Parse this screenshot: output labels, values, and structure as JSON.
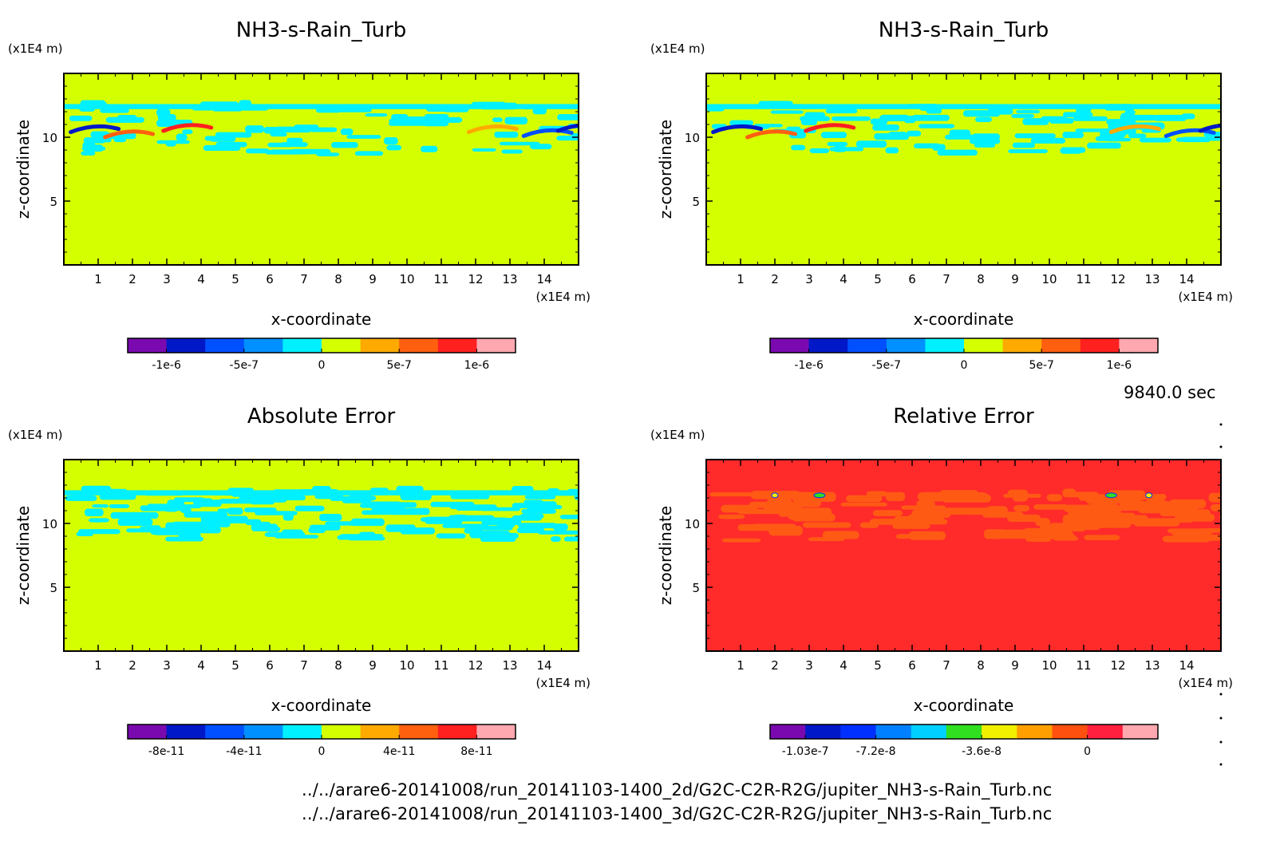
{
  "timestamp": "9840.0 sec",
  "footer": {
    "path_2d": "../../arare6-20141008/run_20141103-1400_2d/G2C-C2R-R2G/jupiter_NH3-s-Rain_Turb.nc",
    "path_3d": "../../arare6-20141008/run_20141103-1400_3d/G2C-C2R-R2G/jupiter_NH3-s-Rain_Turb.nc"
  },
  "chart_data": [
    {
      "type": "heatmap",
      "title": "NH3-s-Rain_Turb",
      "xlabel": "x-coordinate",
      "ylabel": "z-coordinate",
      "x_unit": "(x1E4 m)",
      "y_unit": "(x1E4 m)",
      "xlim": [
        0,
        15
      ],
      "ylim": [
        0,
        15
      ],
      "x_ticks": [
        "1",
        "2",
        "3",
        "4",
        "5",
        "6",
        "7",
        "8",
        "9",
        "10",
        "11",
        "12",
        "13",
        "14"
      ],
      "y_ticks": [
        "5",
        "10"
      ],
      "background_color": "#d4ff00",
      "colorbar": {
        "colors": [
          "#7a0ab0",
          "#0018c8",
          "#0050ff",
          "#0090ff",
          "#00f0ff",
          "#d4ff00",
          "#ffaa00",
          "#ff6010",
          "#ff2020",
          "#ffa8b0"
        ],
        "labels": [
          "-1e-6",
          "-5e-7",
          "0",
          "5e-7",
          "1e-6"
        ]
      },
      "feature_band_z": [
        8.5,
        12.5
      ]
    },
    {
      "type": "heatmap",
      "title": "NH3-s-Rain_Turb",
      "xlabel": "x-coordinate",
      "ylabel": "z-coordinate",
      "x_unit": "(x1E4 m)",
      "y_unit": "(x1E4 m)",
      "xlim": [
        0,
        15
      ],
      "ylim": [
        0,
        15
      ],
      "x_ticks": [
        "1",
        "2",
        "3",
        "4",
        "5",
        "6",
        "7",
        "8",
        "9",
        "10",
        "11",
        "12",
        "13",
        "14"
      ],
      "y_ticks": [
        "5",
        "10"
      ],
      "background_color": "#d4ff00",
      "colorbar": {
        "colors": [
          "#7a0ab0",
          "#0018c8",
          "#0050ff",
          "#0090ff",
          "#00f0ff",
          "#d4ff00",
          "#ffaa00",
          "#ff6010",
          "#ff2020",
          "#ffa8b0"
        ],
        "labels": [
          "-1e-6",
          "-5e-7",
          "0",
          "5e-7",
          "1e-6"
        ]
      },
      "feature_band_z": [
        8.5,
        12.5
      ]
    },
    {
      "type": "heatmap",
      "title": "Absolute Error",
      "xlabel": "x-coordinate",
      "ylabel": "z-coordinate",
      "x_unit": "(x1E4 m)",
      "y_unit": "(x1E4 m)",
      "xlim": [
        0,
        15
      ],
      "ylim": [
        0,
        15
      ],
      "x_ticks": [
        "1",
        "2",
        "3",
        "4",
        "5",
        "6",
        "7",
        "8",
        "9",
        "10",
        "11",
        "12",
        "13",
        "14"
      ],
      "y_ticks": [
        "5",
        "10"
      ],
      "background_color": "#d4ff00",
      "colorbar": {
        "colors": [
          "#7a0ab0",
          "#0018c8",
          "#0050ff",
          "#0090ff",
          "#00f0ff",
          "#d4ff00",
          "#ffaa00",
          "#ff6010",
          "#ff2020",
          "#ffa8b0"
        ],
        "labels": [
          "-8e-11",
          "-4e-11",
          "0",
          "4e-11",
          "8e-11"
        ]
      },
      "feature_band_z": [
        8.5,
        12.5
      ]
    },
    {
      "type": "heatmap",
      "title": "Relative Error",
      "xlabel": "x-coordinate",
      "ylabel": "z-coordinate",
      "x_unit": "(x1E4 m)",
      "y_unit": "(x1E4 m)",
      "xlim": [
        0,
        15
      ],
      "ylim": [
        0,
        15
      ],
      "x_ticks": [
        "1",
        "2",
        "3",
        "4",
        "5",
        "6",
        "7",
        "8",
        "9",
        "10",
        "11",
        "12",
        "13",
        "14"
      ],
      "y_ticks": [
        "5",
        "10"
      ],
      "background_color": "#ff2a2a",
      "colorbar": {
        "colors": [
          "#7a0ab0",
          "#0018c8",
          "#0030ff",
          "#0080ff",
          "#00d0ff",
          "#30e020",
          "#f0f000",
          "#ffa000",
          "#ff5010",
          "#ff2040",
          "#ffa8b0"
        ],
        "labels": [
          "-1.03e-7",
          "-7.2e-8",
          "-3.6e-8",
          "0"
        ]
      },
      "feature_band_z": [
        8.5,
        12.5
      ]
    }
  ]
}
